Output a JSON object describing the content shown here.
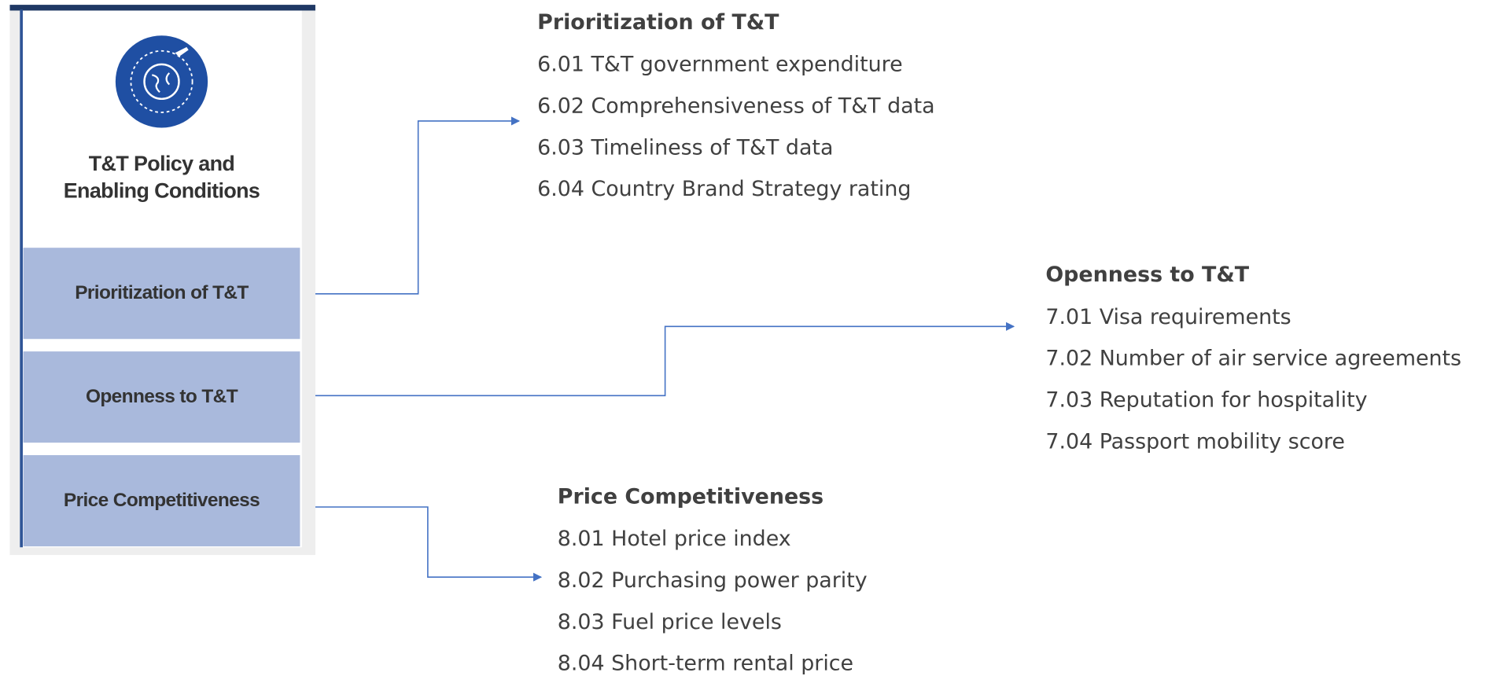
{
  "panel": {
    "title_lines": [
      "T&T Policy and",
      "Enabling Conditions"
    ]
  },
  "sections": [
    {
      "label": "Prioritization of T&T",
      "heading": "Prioritization of T&T",
      "items": [
        "6.01 T&T government expenditure",
        "6.02 Comprehensiveness of T&T data",
        "6.03 Timeliness of T&T data",
        "6.04 Country Brand Strategy rating"
      ]
    },
    {
      "label": "Openness to T&T",
      "heading": "Openness to T&T",
      "items": [
        "7.01 Visa requirements",
        "7.02 Number of air service agreements",
        "7.03 Reputation for hospitality",
        "7.04 Passport mobility score"
      ]
    },
    {
      "label": "Price Competitiveness",
      "heading": "Price Competitiveness",
      "items": [
        "8.01 Hotel price index",
        "8.02 Purchasing power parity",
        "8.03 Fuel price levels",
        "8.04 Short-term rental price"
      ]
    }
  ]
}
